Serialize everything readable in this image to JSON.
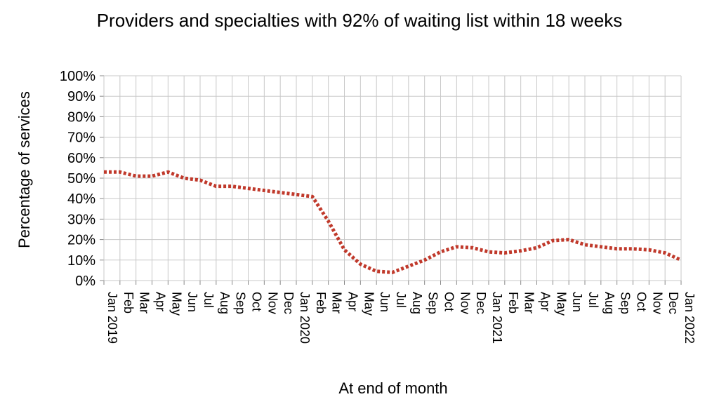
{
  "chart_data": {
    "type": "line",
    "title": "Providers and specialties with 92% of waiting list within 18 weeks",
    "xlabel": "At end of month",
    "ylabel": "Percentage of services",
    "ylim": [
      0,
      100
    ],
    "y_ticks": [
      "0%",
      "10%",
      "20%",
      "30%",
      "40%",
      "50%",
      "60%",
      "70%",
      "80%",
      "90%",
      "100%"
    ],
    "grid": true,
    "legend": "none",
    "categories": [
      "Jan 2019",
      "Feb",
      "Mar",
      "Apr",
      "May",
      "Jun",
      "Jul",
      "Aug",
      "Sep",
      "Oct",
      "Nov",
      "Dec",
      "Jan 2020",
      "Feb",
      "Mar",
      "Apr",
      "May",
      "Jun",
      "Jul",
      "Aug",
      "Sep",
      "Oct",
      "Nov",
      "Dec",
      "Jan 2021",
      "Feb",
      "Mar",
      "Apr",
      "May",
      "Jun",
      "Jul",
      "Aug",
      "Sep",
      "Oct",
      "Nov",
      "Dec",
      "Jan 2022"
    ],
    "series": [
      {
        "color": "#c0392b",
        "style": "dotted",
        "values": [
          53,
          53,
          51,
          51,
          53,
          50,
          49,
          46,
          46,
          45,
          44,
          43,
          42,
          41,
          29,
          15,
          8,
          4.5,
          4,
          7,
          10,
          14,
          16.5,
          16,
          14,
          13.5,
          14.5,
          16,
          19.5,
          20,
          17.5,
          16.5,
          15.5,
          15.5,
          15,
          13.5,
          10
        ]
      }
    ]
  }
}
